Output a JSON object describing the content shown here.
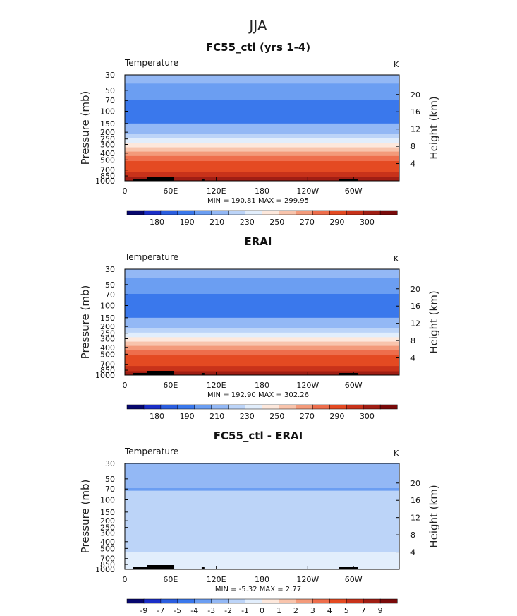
{
  "figure_title": "JJA",
  "chart_data": [
    {
      "type": "heatmap",
      "title": "FC55_ctl (yrs 1-4)",
      "variable": "Temperature",
      "units": "K",
      "ylabel": "Pressure (mb)",
      "ylabel_right": "Height (km)",
      "x_ticks": [
        "0",
        "60E",
        "120E",
        "180",
        "120W",
        "60W"
      ],
      "y_ticks": [
        "30",
        "50",
        "70",
        "100",
        "150",
        "200",
        "250",
        "300",
        "400",
        "500",
        "700",
        "850",
        "1000"
      ],
      "height_ticks": [
        "20",
        "16",
        "12",
        "8",
        "4"
      ],
      "stats": "MIN = 190.81   MAX = 299.95",
      "colorbar_labels": [
        "180",
        "190",
        "210",
        "230",
        "250",
        "270",
        "290",
        "300"
      ],
      "colorbar_colors": [
        "#07076e",
        "#1a2ec8",
        "#2b5ee0",
        "#3a78ec",
        "#6b9ef2",
        "#93b8f5",
        "#bcd4f8",
        "#e2eefc",
        "#fde8dc",
        "#f8c4ac",
        "#f39a7a",
        "#ee6e4c",
        "#e44a22",
        "#c8321a",
        "#a01e14",
        "#7a0a0a"
      ],
      "temperature_bands": [
        {
          "p_top": 30,
          "p_bottom": 40,
          "t": 215
        },
        {
          "p_top": 40,
          "p_bottom": 68,
          "t": 210
        },
        {
          "p_top": 68,
          "p_bottom": 120,
          "t": 200
        },
        {
          "p_top": 120,
          "p_bottom": 150,
          "t": 205
        },
        {
          "p_top": 150,
          "p_bottom": 180,
          "t": 215
        },
        {
          "p_top": 180,
          "p_bottom": 210,
          "t": 220
        },
        {
          "p_top": 210,
          "p_bottom": 245,
          "t": 225
        },
        {
          "p_top": 245,
          "p_bottom": 285,
          "t": 235
        },
        {
          "p_top": 285,
          "p_bottom": 330,
          "t": 245
        },
        {
          "p_top": 330,
          "p_bottom": 380,
          "t": 255
        },
        {
          "p_top": 380,
          "p_bottom": 440,
          "t": 262
        },
        {
          "p_top": 440,
          "p_bottom": 520,
          "t": 268
        },
        {
          "p_top": 520,
          "p_bottom": 620,
          "t": 275
        },
        {
          "p_top": 620,
          "p_bottom": 740,
          "t": 282
        },
        {
          "p_top": 740,
          "p_bottom": 880,
          "t": 288
        },
        {
          "p_top": 880,
          "p_bottom": 1000,
          "t": 295
        }
      ]
    },
    {
      "type": "heatmap",
      "title": "ERAI",
      "variable": "Temperature",
      "units": "K",
      "ylabel": "Pressure (mb)",
      "ylabel_right": "Height (km)",
      "x_ticks": [
        "0",
        "60E",
        "120E",
        "180",
        "120W",
        "60W"
      ],
      "y_ticks": [
        "30",
        "50",
        "70",
        "100",
        "150",
        "200",
        "250",
        "300",
        "400",
        "500",
        "700",
        "850",
        "1000"
      ],
      "height_ticks": [
        "20",
        "16",
        "12",
        "8",
        "4"
      ],
      "stats": "MIN = 192.90   MAX = 302.26",
      "colorbar_labels": [
        "180",
        "190",
        "210",
        "230",
        "250",
        "270",
        "290",
        "300"
      ],
      "colorbar_colors": [
        "#07076e",
        "#1a2ec8",
        "#2b5ee0",
        "#3a78ec",
        "#6b9ef2",
        "#93b8f5",
        "#bcd4f8",
        "#e2eefc",
        "#fde8dc",
        "#f8c4ac",
        "#f39a7a",
        "#ee6e4c",
        "#e44a22",
        "#c8321a",
        "#a01e14",
        "#7a0a0a"
      ],
      "temperature_bands": [
        {
          "p_top": 30,
          "p_bottom": 40,
          "t": 215
        },
        {
          "p_top": 40,
          "p_bottom": 68,
          "t": 210
        },
        {
          "p_top": 68,
          "p_bottom": 120,
          "t": 200
        },
        {
          "p_top": 120,
          "p_bottom": 150,
          "t": 205
        },
        {
          "p_top": 150,
          "p_bottom": 180,
          "t": 215
        },
        {
          "p_top": 180,
          "p_bottom": 210,
          "t": 220
        },
        {
          "p_top": 210,
          "p_bottom": 245,
          "t": 225
        },
        {
          "p_top": 245,
          "p_bottom": 285,
          "t": 235
        },
        {
          "p_top": 285,
          "p_bottom": 330,
          "t": 245
        },
        {
          "p_top": 330,
          "p_bottom": 380,
          "t": 255
        },
        {
          "p_top": 380,
          "p_bottom": 440,
          "t": 262
        },
        {
          "p_top": 440,
          "p_bottom": 520,
          "t": 268
        },
        {
          "p_top": 520,
          "p_bottom": 620,
          "t": 275
        },
        {
          "p_top": 620,
          "p_bottom": 740,
          "t": 282
        },
        {
          "p_top": 740,
          "p_bottom": 880,
          "t": 288
        },
        {
          "p_top": 880,
          "p_bottom": 1000,
          "t": 296
        }
      ]
    },
    {
      "type": "heatmap",
      "title": "FC55_ctl - ERAI",
      "variable": "Temperature",
      "units": "K",
      "ylabel": "Pressure (mb)",
      "ylabel_right": "Height (km)",
      "x_ticks": [
        "0",
        "60E",
        "120E",
        "180",
        "120W",
        "60W"
      ],
      "y_ticks": [
        "30",
        "50",
        "70",
        "100",
        "150",
        "200",
        "250",
        "300",
        "400",
        "500",
        "700",
        "850",
        "1000"
      ],
      "height_ticks": [
        "20",
        "16",
        "12",
        "8",
        "4"
      ],
      "stats": "MIN =   -5.32   MAX =    2.77",
      "colorbar_labels": [
        "-9",
        "-7",
        "-5",
        "-4",
        "-3",
        "-2",
        "-1",
        "0",
        "1",
        "2",
        "3",
        "4",
        "5",
        "7",
        "9"
      ],
      "colorbar_colors": [
        "#07076e",
        "#1a2ec8",
        "#2b5ee0",
        "#3a78ec",
        "#6b9ef2",
        "#93b8f5",
        "#bcd4f8",
        "#e2eefc",
        "#fde8dc",
        "#f8c4ac",
        "#f39a7a",
        "#ee6e4c",
        "#e44a22",
        "#c8321a",
        "#a01e14",
        "#7a0a0a"
      ],
      "temperature_bands": [
        {
          "p_top": 30,
          "p_bottom": 68,
          "t": -3
        },
        {
          "p_top": 68,
          "p_bottom": 74,
          "t": -4
        },
        {
          "p_top": 74,
          "p_bottom": 150,
          "t": -2
        },
        {
          "p_top": 150,
          "p_bottom": 300,
          "t": -2.5
        },
        {
          "p_top": 300,
          "p_bottom": 560,
          "t": -1.5
        },
        {
          "p_top": 560,
          "p_bottom": 880,
          "t": -1.2
        },
        {
          "p_top": 880,
          "p_bottom": 1000,
          "t": -0.5
        }
      ]
    }
  ]
}
